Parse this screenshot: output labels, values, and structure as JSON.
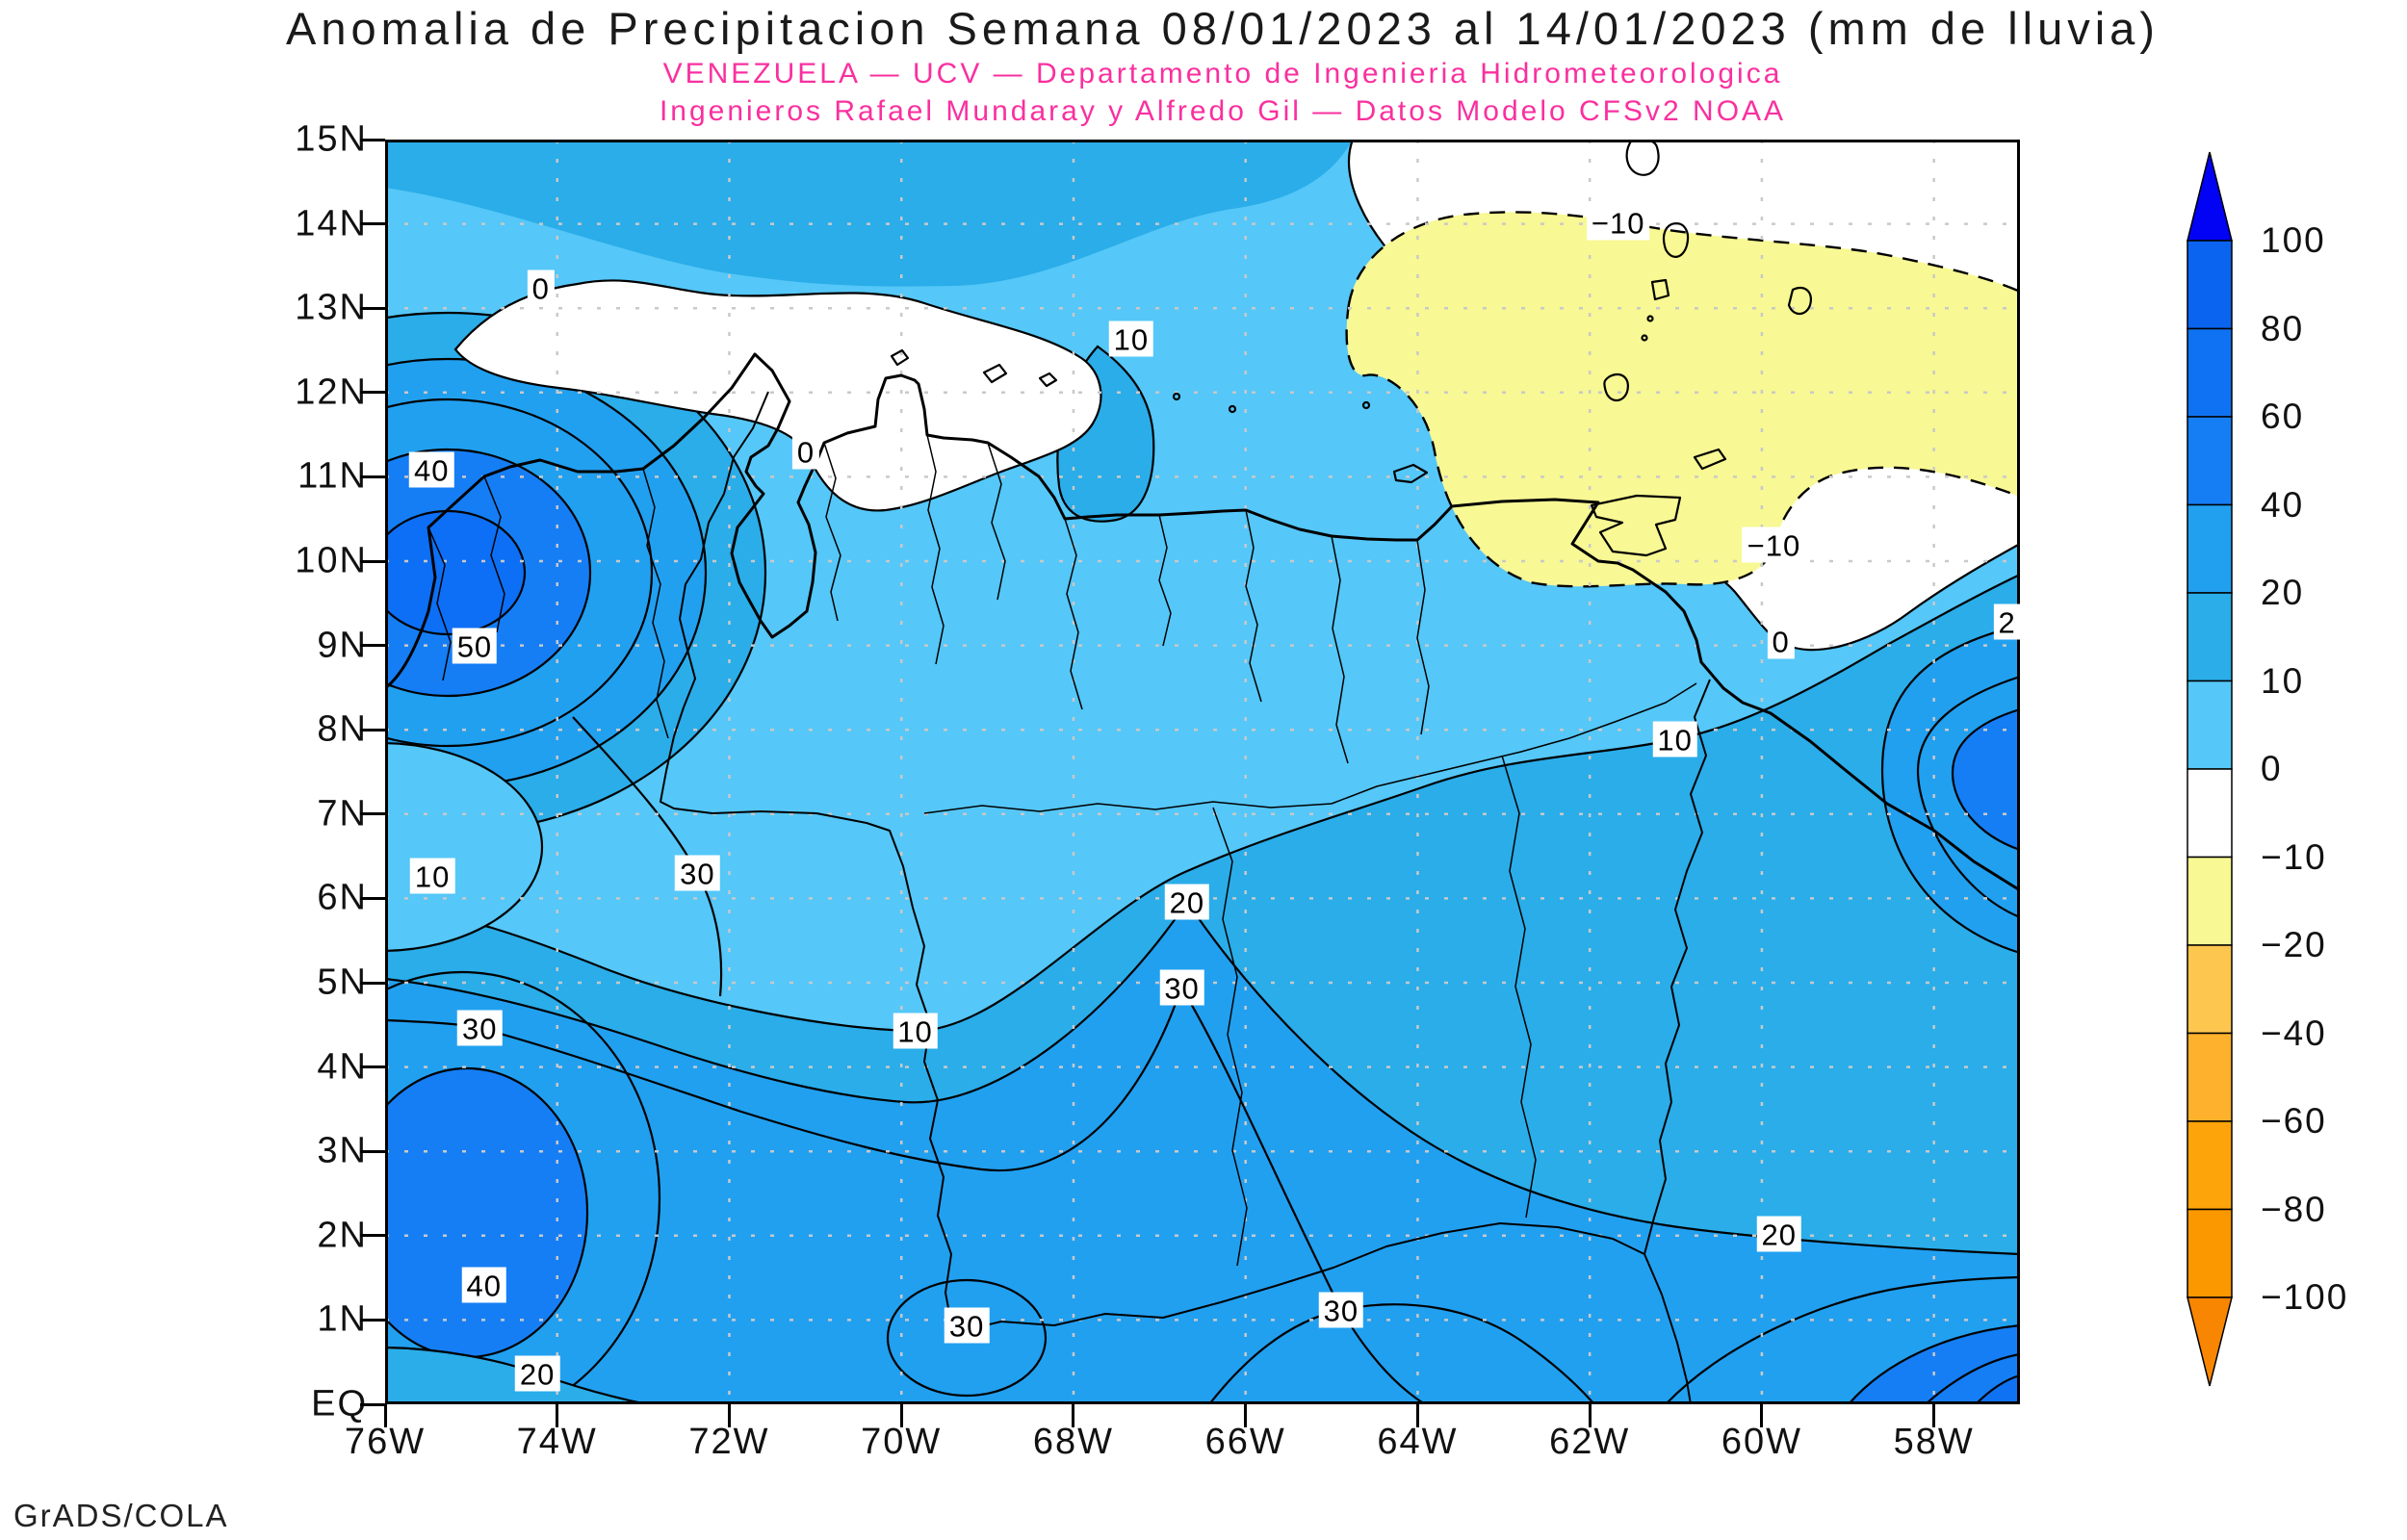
{
  "header": {
    "title": "Anomalia de Precipitacion Semana 08/01/2023 al 14/01/2023 (mm de lluvia)",
    "subtitle1": "VENEZUELA — UCV — Departamento de Ingenieria Hidrometeorologica",
    "subtitle2": "Ingenieros Rafael Mundaray y Alfredo Gil — Datos Modelo CFSv2 NOAA"
  },
  "footer": {
    "credit": "GrADS/COLA"
  },
  "colors": {
    "page_bg": "#ffffff",
    "title_text": "#1a1a1a",
    "subtitle_text": "#f9309f",
    "axis_text": "#111111",
    "contour_line": "#000000",
    "coastline": "#000000",
    "grid_dots": "#c9c9c9",
    "band_gt100": "#0202f5",
    "band_80_100": "#0a64f0",
    "band_60_80": "#0f72f2",
    "band_40_60": "#157ef5",
    "band_50_60_core": "#0d6ff5",
    "band_20_40": "#21a0f0",
    "band_10_20": "#2aade9",
    "band_0_10": "#55c7f8",
    "band_0_m10": "#ffffff",
    "band_m10_m20": "#f8f894",
    "band_m20_m40": "#fdc64f",
    "band_m40_m60": "#fdb12c",
    "band_m60_m80": "#fda40a",
    "band_m80_m100": "#fb9800",
    "band_ltm100": "#f98603"
  },
  "chart_data": {
    "type": "filled_contour_map",
    "title": "Anomalia de Precipitacion Semana 08/01/2023 al 14/01/2023 (mm de lluvia)",
    "units": "mm de lluvia",
    "renderer": "GrADS/COLA",
    "x_ticks": [
      "76W",
      "74W",
      "72W",
      "70W",
      "68W",
      "66W",
      "64W",
      "62W",
      "60W",
      "58W"
    ],
    "y_ticks": [
      "15N",
      "14N",
      "13N",
      "12N",
      "11N",
      "10N",
      "9N",
      "8N",
      "7N",
      "6N",
      "5N",
      "4N",
      "3N",
      "2N",
      "1N",
      "EQ"
    ],
    "lon_range_deg_w": [
      76,
      57
    ],
    "lat_range_deg_n": [
      0,
      15
    ],
    "grid": "dotted, 2 deg lon x 1 deg lat",
    "contour_interval": 10,
    "negative_contours": "dashed",
    "fill_levels": [
      -100,
      -80,
      -60,
      -40,
      -20,
      -10,
      0,
      10,
      20,
      40,
      60,
      80,
      100
    ],
    "colorbar": {
      "position": "right",
      "levels": [
        "100",
        "80",
        "60",
        "40",
        "20",
        "10",
        "0",
        "−10",
        "−20",
        "−40",
        "−60",
        "−80",
        "−100"
      ],
      "segment_color_keys": [
        "band_80_100",
        "band_60_80",
        "band_40_60",
        "band_20_40",
        "band_10_20",
        "band_0_10",
        "band_0_m10",
        "band_m10_m20",
        "band_m20_m40",
        "band_m40_m60",
        "band_m60_m80",
        "band_m80_m100"
      ],
      "arrow_top_color_key": "band_gt100",
      "arrow_bottom_color_key": "band_ltm100"
    },
    "contour_labels": [
      {
        "text": "0",
        "lon": 74.19,
        "lat": 13.24
      },
      {
        "text": "10",
        "lon": 67.33,
        "lat": 12.64
      },
      {
        "text": "−10",
        "lon": 61.67,
        "lat": 14.02
      },
      {
        "text": "0",
        "lon": 71.11,
        "lat": 11.3
      },
      {
        "text": "40",
        "lon": 75.46,
        "lat": 11.08
      },
      {
        "text": "50",
        "lon": 74.96,
        "lat": 9.0
      },
      {
        "text": "−10",
        "lon": 59.86,
        "lat": 10.19
      },
      {
        "text": "0",
        "lon": 59.78,
        "lat": 9.05
      },
      {
        "text": "10",
        "lon": 61.01,
        "lat": 7.89
      },
      {
        "text": "2",
        "lon": 57.15,
        "lat": 9.28
      },
      {
        "text": "10",
        "lon": 75.45,
        "lat": 6.27
      },
      {
        "text": "30",
        "lon": 72.37,
        "lat": 6.3
      },
      {
        "text": "20",
        "lon": 66.68,
        "lat": 5.96
      },
      {
        "text": "30",
        "lon": 66.74,
        "lat": 4.94
      },
      {
        "text": "30",
        "lon": 74.9,
        "lat": 4.46
      },
      {
        "text": "10",
        "lon": 69.84,
        "lat": 4.43
      },
      {
        "text": "40",
        "lon": 74.85,
        "lat": 1.42
      },
      {
        "text": "30",
        "lon": 69.24,
        "lat": 0.94
      },
      {
        "text": "30",
        "lon": 64.89,
        "lat": 1.12
      },
      {
        "text": "20",
        "lon": 74.23,
        "lat": 0.37
      },
      {
        "text": "20",
        "lon": 59.8,
        "lat": 2.02
      }
    ],
    "notable_features": [
      {
        "feature": "positive anomaly maximum >50 mm",
        "near": "75W, 10N"
      },
      {
        "feature": "secondary positive core 40-50 mm",
        "near": "74.8W, 2.5N"
      },
      {
        "feature": "near-zero band (white, 0 to -10)",
        "near": "75W-67.5W, 11N-13.5N"
      },
      {
        "feature": "negative anomaly -10 to -20 (yellow)",
        "near": "65W-57W, 10N-14N"
      },
      {
        "feature": "positive core at east edge",
        "near": "57W, 7.5N"
      },
      {
        "feature": "strong positive anomaly at SE corner",
        "near": "58W, EQ-1.5N"
      }
    ]
  }
}
